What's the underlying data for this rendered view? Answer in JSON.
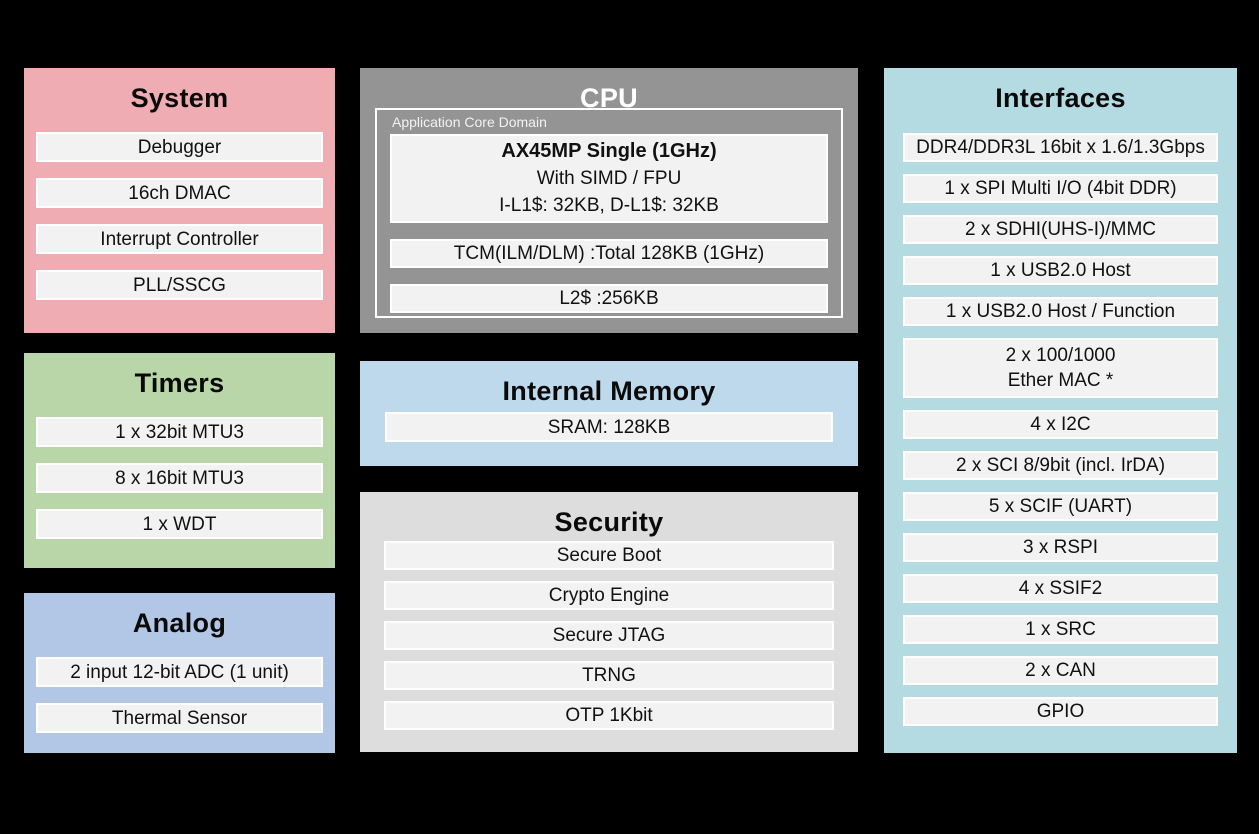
{
  "diagram_background": "#000000",
  "block_fill": "#f2f2f2",
  "panels": {
    "system": {
      "title": "System",
      "color": "#efacb2",
      "items": [
        "Debugger",
        "16ch DMAC",
        "Interrupt Controller",
        "PLL/SSCG"
      ]
    },
    "timers": {
      "title": "Timers",
      "color": "#b8d6a8",
      "items": [
        "1 x 32bit MTU3",
        "8 x 16bit MTU3",
        "1 x WDT"
      ]
    },
    "analog": {
      "title": "Analog",
      "color": "#b2c6e6",
      "items": [
        "2 input 12-bit ADC (1 unit)",
        "Thermal Sensor"
      ]
    },
    "cpu": {
      "title": "CPU",
      "color": "#949494",
      "domain_label": "Application Core Domain",
      "core": {
        "line1": "AX45MP Single (1GHz)",
        "line2": "With SIMD / FPU",
        "line3": "I-L1$: 32KB, D-L1$: 32KB"
      },
      "tcm": "TCM(ILM/DLM) :Total 128KB (1GHz)",
      "l2": "L2$ :256KB"
    },
    "internal_memory": {
      "title": "Internal Memory",
      "color": "#bed8ec",
      "items": [
        "SRAM: 128KB"
      ]
    },
    "security": {
      "title": "Security",
      "color": "#dddddd",
      "items": [
        "Secure Boot",
        "Crypto Engine",
        "Secure JTAG",
        "TRNG",
        "OTP 1Kbit"
      ]
    },
    "interfaces": {
      "title": "Interfaces",
      "color": "#b4dbe1",
      "items": [
        "DDR4/DDR3L 16bit x 1.6/1.3Gbps",
        "1 x SPI Multi I/O (4bit DDR)",
        "2 x SDHI(UHS-I)/MMC",
        "1 x USB2.0 Host",
        "1 x USB2.0 Host / Function",
        "2 x 100/1000\nEther MAC *",
        "4 x I2C",
        "2 x SCI 8/9bit (incl. IrDA)",
        "5 x SCIF (UART)",
        "3 x RSPI",
        "4 x SSIF2",
        "1 x SRC",
        "2 x CAN",
        "GPIO"
      ]
    }
  }
}
